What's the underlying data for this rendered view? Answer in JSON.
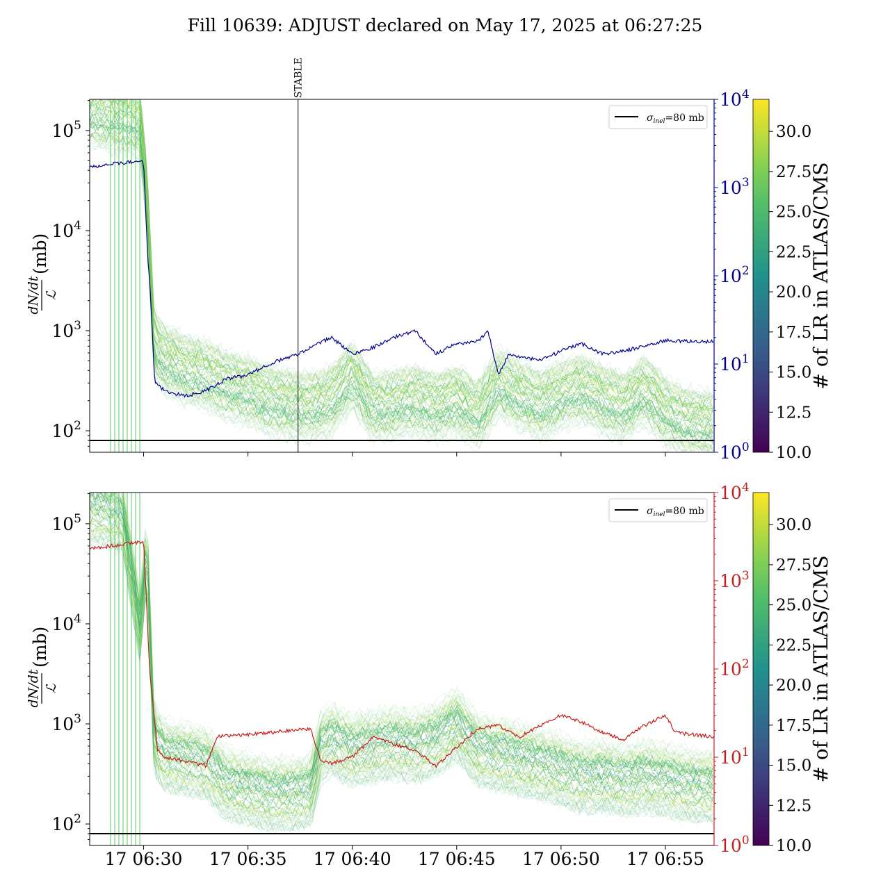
{
  "title": "Fill 10639: ADJUST declared on May 17, 2025 at 06:27:25",
  "chart_data": [
    {
      "type": "line",
      "panel": "top",
      "ylabel": "dN/dt / L (mb)",
      "ylabel_num": "dN/dt",
      "ylabel_den": "ℒ",
      "ylabel_unit": "(mb)",
      "yscale": "log",
      "ylim": [
        61,
        205000
      ],
      "yticks": [
        {
          "v": 100,
          "label": "10",
          "exp": "2"
        },
        {
          "v": 1000,
          "label": "10",
          "exp": "3"
        },
        {
          "v": 10000,
          "label": "10",
          "exp": "4"
        },
        {
          "v": 100000,
          "label": "10",
          "exp": "5"
        }
      ],
      "xlim": [
        "06:27:25",
        "06:57:20"
      ],
      "xticks": [
        "06:30:00",
        "06:35:00",
        "06:40:00",
        "06:45:00",
        "06:50:00",
        "06:55:00"
      ],
      "xtick_labels": [],
      "right_axis": {
        "color": "#00008b",
        "ylim": [
          1,
          10000
        ],
        "yticks": [
          {
            "v": 1,
            "label": "10",
            "exp": "0"
          },
          {
            "v": 10,
            "label": "10",
            "exp": "1"
          },
          {
            "v": 100,
            "label": "10",
            "exp": "2"
          },
          {
            "v": 1000,
            "label": "10",
            "exp": "3"
          },
          {
            "v": 10000,
            "label": "10",
            "exp": "4"
          }
        ]
      },
      "annotation": {
        "label": "STABLE",
        "time": "06:37:24"
      },
      "reference_line": {
        "value": 80,
        "legend": "σ",
        "legend_sub": "inel",
        "legend_rest": "=80 mb"
      },
      "ensemble_median": {
        "t": [
          "06:27:25",
          "06:28:00",
          "06:29:00",
          "06:29:50",
          "06:30:10",
          "06:30:30",
          "06:31:00",
          "06:32:00",
          "06:33:00",
          "06:34:00",
          "06:35:00",
          "06:36:00",
          "06:37:00",
          "06:38:00",
          "06:39:00",
          "06:40:00",
          "06:41:00",
          "06:42:00",
          "06:43:00",
          "06:44:00",
          "06:45:00",
          "06:46:00",
          "06:47:00",
          "06:48:00",
          "06:49:00",
          "06:50:00",
          "06:51:00",
          "06:52:00",
          "06:53:00",
          "06:54:00",
          "06:55:00",
          "06:56:00",
          "06:57:20"
        ],
        "v": [
          150000,
          140000,
          130000,
          120000,
          20000,
          700,
          500,
          400,
          350,
          280,
          250,
          200,
          180,
          170,
          200,
          350,
          170,
          180,
          200,
          170,
          200,
          140,
          300,
          220,
          180,
          220,
          260,
          200,
          170,
          250,
          150,
          120,
          110
        ]
      },
      "right_series": {
        "t": [
          "06:27:25",
          "06:28:00",
          "06:29:00",
          "06:30:00",
          "06:30:12",
          "06:30:20",
          "06:30:32",
          "06:31:00",
          "06:32:00",
          "06:33:00",
          "06:34:00",
          "06:35:00",
          "06:36:00",
          "06:37:00",
          "06:37:24",
          "06:38:00",
          "06:39:00",
          "06:40:00",
          "06:41:00",
          "06:42:00",
          "06:43:00",
          "06:44:00",
          "06:45:00",
          "06:46:00",
          "06:46:30",
          "06:47:00",
          "06:47:30",
          "06:48:00",
          "06:49:00",
          "06:50:00",
          "06:51:00",
          "06:52:00",
          "06:53:00",
          "06:54:00",
          "06:55:00",
          "06:56:00",
          "06:57:20"
        ],
        "v": [
          1700,
          1800,
          1900,
          2000,
          160,
          60,
          6.2,
          5,
          4.3,
          5,
          6.8,
          7.5,
          10,
          12,
          13,
          15.5,
          20,
          13,
          15.5,
          20,
          24,
          13,
          17,
          18,
          24,
          7.5,
          13,
          12,
          11,
          14,
          17,
          13,
          14,
          16,
          18.5,
          18,
          18
        ]
      }
    },
    {
      "type": "line",
      "panel": "bottom",
      "ylabel": "dN/dt / L (mb)",
      "ylabel_num": "dN/dt",
      "ylabel_den": "ℒ",
      "ylabel_unit": "(mb)",
      "yscale": "log",
      "ylim": [
        61,
        205000
      ],
      "yticks": [
        {
          "v": 100,
          "label": "10",
          "exp": "2"
        },
        {
          "v": 1000,
          "label": "10",
          "exp": "3"
        },
        {
          "v": 10000,
          "label": "10",
          "exp": "4"
        },
        {
          "v": 100000,
          "label": "10",
          "exp": "5"
        }
      ],
      "xlim": [
        "06:27:25",
        "06:57:20"
      ],
      "xticks": [
        "06:30:00",
        "06:35:00",
        "06:40:00",
        "06:45:00",
        "06:50:00",
        "06:55:00"
      ],
      "xtick_labels": [
        "17 06:30",
        "17 06:35",
        "17 06:40",
        "17 06:45",
        "17 06:50",
        "17 06:55"
      ],
      "right_axis": {
        "color": "#c41e1e",
        "ylim": [
          1,
          10000
        ],
        "yticks": [
          {
            "v": 1,
            "label": "10",
            "exp": "0"
          },
          {
            "v": 10,
            "label": "10",
            "exp": "1"
          },
          {
            "v": 100,
            "label": "10",
            "exp": "2"
          },
          {
            "v": 1000,
            "label": "10",
            "exp": "3"
          },
          {
            "v": 10000,
            "label": "10",
            "exp": "4"
          }
        ]
      },
      "reference_line": {
        "value": 80,
        "legend": "σ",
        "legend_sub": "inel",
        "legend_rest": "=80 mb"
      },
      "ensemble_median": {
        "t": [
          "06:27:25",
          "06:28:00",
          "06:29:00",
          "06:29:50",
          "06:30:10",
          "06:30:30",
          "06:31:00",
          "06:32:00",
          "06:33:00",
          "06:34:00",
          "06:35:00",
          "06:36:00",
          "06:37:00",
          "06:38:00",
          "06:38:30",
          "06:39:00",
          "06:40:00",
          "06:41:00",
          "06:42:00",
          "06:43:00",
          "06:44:00",
          "06:45:00",
          "06:46:00",
          "06:47:00",
          "06:48:00",
          "06:49:00",
          "06:50:00",
          "06:51:00",
          "06:52:00",
          "06:53:00",
          "06:54:00",
          "06:55:00",
          "06:56:00",
          "06:57:20"
        ],
        "v": [
          150000,
          140000,
          120000,
          9000,
          60000,
          700,
          500,
          450,
          400,
          250,
          230,
          200,
          200,
          220,
          600,
          700,
          550,
          600,
          650,
          600,
          700,
          1000,
          550,
          500,
          450,
          400,
          350,
          300,
          300,
          280,
          300,
          280,
          250,
          240
        ]
      },
      "right_series": {
        "t": [
          "06:27:25",
          "06:28:00",
          "06:29:00",
          "06:30:00",
          "06:30:18",
          "06:30:40",
          "06:31:00",
          "06:32:00",
          "06:33:00",
          "06:33:30",
          "06:34:00",
          "06:35:00",
          "06:36:00",
          "06:37:00",
          "06:38:00",
          "06:38:30",
          "06:39:00",
          "06:40:00",
          "06:41:00",
          "06:42:00",
          "06:43:00",
          "06:44:00",
          "06:45:00",
          "06:46:00",
          "06:47:00",
          "06:48:00",
          "06:49:00",
          "06:50:00",
          "06:51:00",
          "06:52:00",
          "06:53:00",
          "06:54:00",
          "06:55:00",
          "06:55:30",
          "06:57:20"
        ],
        "v": [
          2300,
          2400,
          2600,
          2800,
          88,
          12,
          10,
          9,
          8,
          17,
          17.5,
          18,
          19,
          20,
          21,
          9,
          8.5,
          10,
          17,
          14,
          12,
          8,
          13,
          21,
          23,
          17,
          23,
          30,
          25,
          19,
          16,
          23,
          30,
          19,
          17
        ]
      }
    }
  ],
  "colorbar": {
    "label": "# of LR in ATLAS/CMS",
    "range": [
      10,
      32
    ],
    "ticks": [
      "10.0",
      "12.5",
      "15.0",
      "17.5",
      "20.0",
      "22.5",
      "25.0",
      "27.5",
      "30.0"
    ],
    "colormap": "viridis"
  },
  "early_marker_times": [
    "06:28:25",
    "06:28:37",
    "06:28:49",
    "06:29:01",
    "06:29:13",
    "06:29:25",
    "06:29:37",
    "06:29:49"
  ]
}
